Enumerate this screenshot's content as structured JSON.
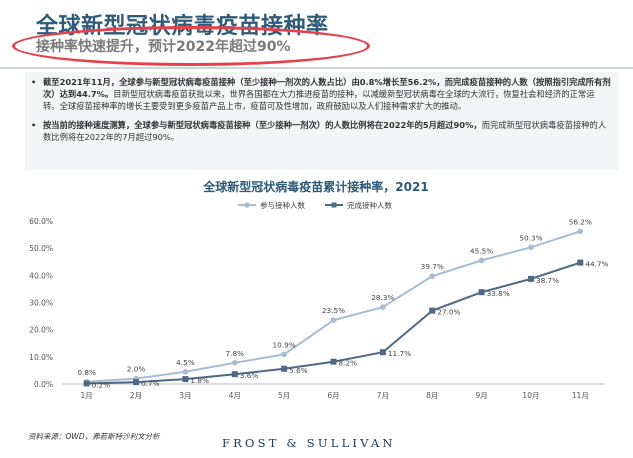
{
  "header": {
    "title": "全球新型冠状病毒疫苗接种率",
    "subtitle": "接种率快速提升，预计2022年超过90%"
  },
  "textbox": {
    "b1_bold": "截至2021年11月，全球参与新型冠状病毒疫苗接种（至少接种一剂次的人数占比）由0.8%增长至56.2%，而完成疫苗接种的人数（按照指引完成所有剂次）达到44.7%。",
    "b1_text": "目新型冠状病毒疫苗获批以来，世界各国都在大力推进疫苗的接种，以减缓新型冠状病毒在全球的大流行，恢复社会和经济的正常运转。全球疫苗接种率的增长主要受到更多疫苗产品上市，疫苗可及性增加，政府鼓励以及人们接种需求扩大的推动。",
    "b2_bold": "按当前的接种速度测算，全球参与新型冠状病毒疫苗接种（至少接种一剂次）的人数比例将在2022年的5月超过90%，",
    "b2_text": "而完成新型冠状病毒疫苗接种的人数比例将在2022年的7月超过90%。",
    "bullet_char": "•"
  },
  "chart_data": {
    "type": "line",
    "title": "全球新型冠状病毒疫苗累计接种率，2021",
    "categories": [
      "1月",
      "2月",
      "3月",
      "4月",
      "5月",
      "6月",
      "7月",
      "8月",
      "9月",
      "10月",
      "11月"
    ],
    "series": [
      {
        "name": "参与接种人数",
        "values": [
          0.8,
          2.0,
          4.5,
          7.8,
          10.9,
          23.5,
          28.3,
          39.7,
          45.5,
          50.3,
          56.2
        ],
        "labels": [
          "0.8%",
          "2.0%",
          "4.5%",
          "7.8%",
          "10.9%",
          "23.5%",
          "28.3%",
          "39.7%",
          "45.5%",
          "50.3%",
          "56.2%"
        ],
        "color": "#a7bcd3",
        "marker": "circle"
      },
      {
        "name": "完成接种人数",
        "values": [
          0.2,
          0.7,
          1.8,
          3.6,
          5.6,
          8.2,
          11.7,
          27.0,
          33.8,
          38.7,
          44.7
        ],
        "labels": [
          "0.2%",
          "0.7%",
          "1.8%",
          "3.6%",
          "5.6%",
          "8.2%",
          "11.7%",
          "27.0%",
          "33.8%",
          "38.7%",
          "44.7%"
        ],
        "color": "#4f6885",
        "marker": "square"
      }
    ],
    "yticks": [
      "0.0%",
      "10.0%",
      "20.0%",
      "30.0%",
      "40.0%",
      "50.0%",
      "60.0%"
    ],
    "ylim": [
      0,
      60
    ],
    "grid": false,
    "legend": "top-center"
  },
  "footer": {
    "source": "资料来源：OWD，弗若斯特沙利文分析",
    "brand": "FROST & SULLIVAN"
  }
}
